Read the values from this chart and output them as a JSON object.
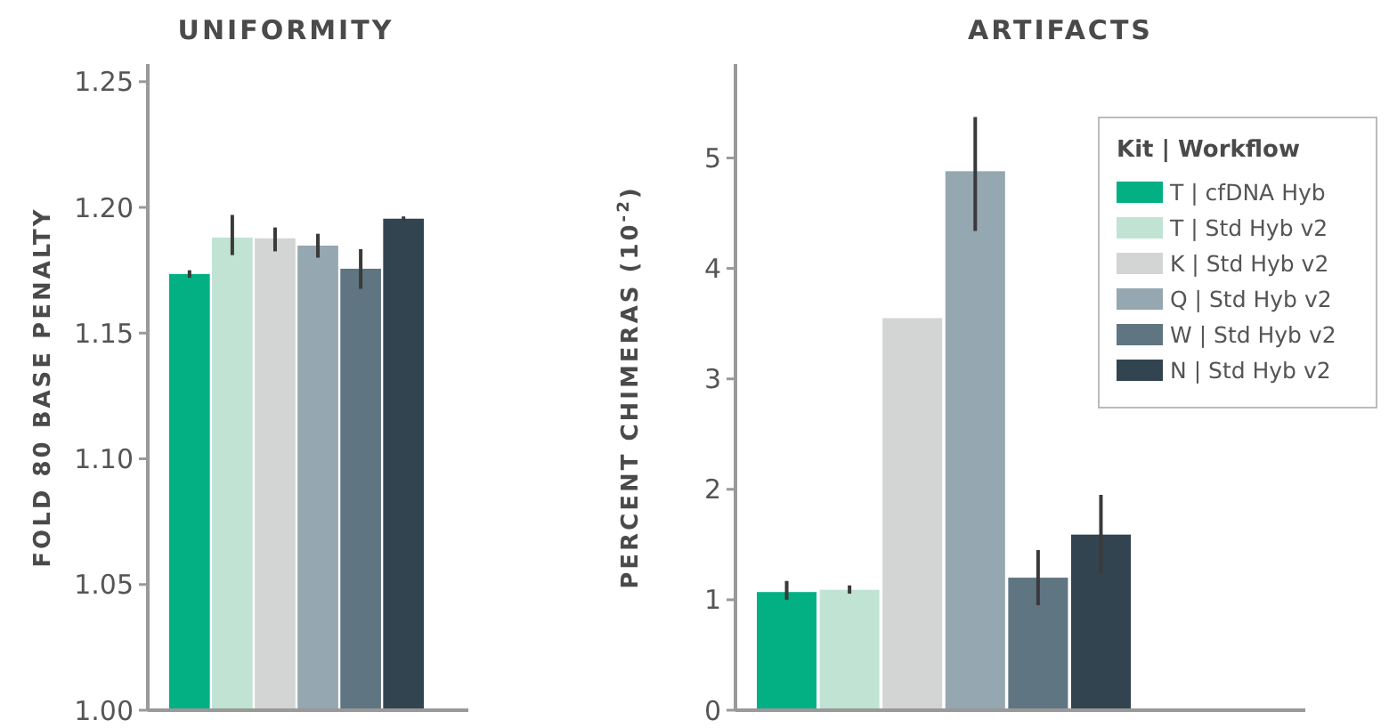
{
  "chart_data": [
    {
      "type": "bar",
      "title": "UNIFORMITY",
      "ylabel": "FOLD 80 BASE PENALTY",
      "categories": [
        null
      ],
      "ylim": [
        1,
        1.257
      ],
      "yticks": [
        {
          "value": 1,
          "label": "1.00"
        },
        {
          "value": 1.05,
          "label": "1.05"
        },
        {
          "value": 1.1,
          "label": "1.10"
        },
        {
          "value": 1.15,
          "label": "1.15"
        },
        {
          "value": 1.2,
          "label": "1.20"
        },
        {
          "value": 1.25,
          "label": "1.25"
        }
      ],
      "grid": false,
      "legend": false,
      "series": [
        {
          "color": "#03b084",
          "values": [
            1.1735
          ],
          "errors": [
            [
              1.172,
              1.175
            ]
          ]
        },
        {
          "color": "#c0e3d4",
          "values": [
            1.188
          ],
          "errors": [
            [
              1.181,
              1.197
            ]
          ]
        },
        {
          "color": "#d3d4d4",
          "values": [
            1.1877
          ],
          "errors": [
            [
              1.1825,
              1.192
            ]
          ]
        },
        {
          "color": "#95a7b0",
          "values": [
            1.1848
          ],
          "errors": [
            [
              1.18,
              1.1895
            ]
          ]
        },
        {
          "color": "#607582",
          "values": [
            1.1756
          ],
          "errors": [
            [
              1.1676,
              1.1834
            ]
          ]
        },
        {
          "color": "#334451",
          "values": [
            1.1955
          ],
          "errors": [
            [
              1.1945,
              1.1964
            ]
          ]
        }
      ]
    },
    {
      "type": "bar",
      "title": "ARTIFACTS",
      "ylabel": "PERCENT CHIMERAS (10$^{-2}$)",
      "categories": [
        null
      ],
      "ylim": [
        0,
        5.85
      ],
      "yticks": [
        0,
        1,
        2,
        3,
        4,
        5
      ],
      "grid": false,
      "legend": "top right",
      "legend_title": "Kit | Workflow",
      "series": [
        {
          "name": "T | cfDNA Hyb",
          "color": "#03b084",
          "values": [
            1.07
          ],
          "errors": [
            [
              1.0,
              1.17
            ]
          ]
        },
        {
          "name": "T | Std Hyb v2",
          "color": "#c0e3d4",
          "values": [
            1.09
          ],
          "errors": [
            [
              1.055,
              1.13
            ]
          ]
        },
        {
          "name": "K | Std Hyb v2",
          "color": "#d3d4d4",
          "values": [
            3.55
          ],
          "errors": [
            null
          ]
        },
        {
          "name": "Q | Std Hyb v2",
          "color": "#95a7b0",
          "values": [
            4.88
          ],
          "errors": [
            [
              4.34,
              5.37
            ]
          ]
        },
        {
          "name": "W | Std Hyb v2",
          "color": "#607582",
          "values": [
            1.2
          ],
          "errors": [
            [
              0.95,
              1.45
            ]
          ]
        },
        {
          "name": "N | Std Hyb v2",
          "color": "#334451",
          "values": [
            1.59
          ],
          "errors": [
            [
              1.24,
              1.95
            ]
          ]
        }
      ]
    }
  ]
}
